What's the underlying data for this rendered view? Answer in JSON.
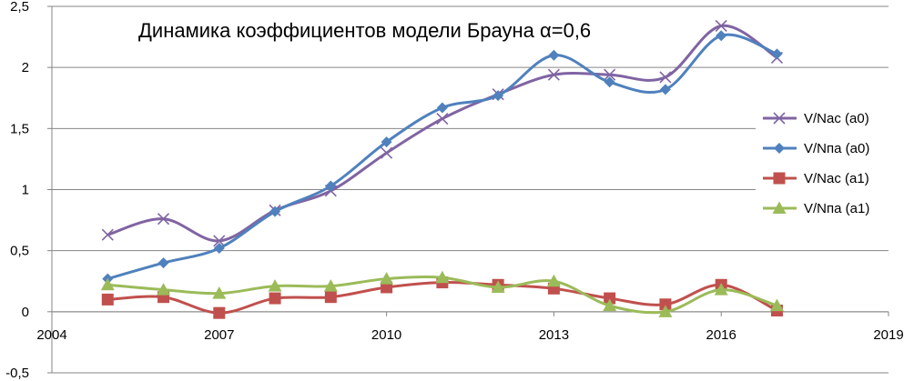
{
  "chart_data": {
    "type": "line",
    "title": "Динамика коэффициентов модели Брауна α=0,6",
    "xlim": [
      2004,
      2019
    ],
    "ylim": [
      -0.5,
      2.5
    ],
    "x_ticks": [
      2004,
      2007,
      2010,
      2013,
      2016,
      2019
    ],
    "x_tick_labels": [
      "2004",
      "2007",
      "2010",
      "2013",
      "2016",
      "2019"
    ],
    "y_ticks": [
      -0.5,
      0,
      0.5,
      1,
      1.5,
      2,
      2.5
    ],
    "y_tick_labels": [
      "-0,5",
      "0",
      "0,5",
      "1",
      "1,5",
      "2",
      "2,5"
    ],
    "grid": "horizontal",
    "legend_position": "right",
    "x": [
      2005,
      2006,
      2007,
      2008,
      2009,
      2010,
      2011,
      2012,
      2013,
      2014,
      2015,
      2016,
      2017
    ],
    "series": [
      {
        "name": "V/Nac (a0)",
        "color": "#8064A2",
        "marker": "x",
        "values": [
          0.63,
          0.76,
          0.58,
          0.83,
          0.99,
          1.3,
          1.58,
          1.78,
          1.94,
          1.94,
          1.92,
          2.34,
          2.08
        ]
      },
      {
        "name": "V/Nпа (a0)",
        "color": "#4F81BD",
        "marker": "diamond",
        "values": [
          0.27,
          0.4,
          0.52,
          0.82,
          1.03,
          1.39,
          1.67,
          1.77,
          2.1,
          1.88,
          1.82,
          2.26,
          2.11
        ]
      },
      {
        "name": "V/Nac (a1)",
        "color": "#C0504D",
        "marker": "square",
        "values": [
          0.1,
          0.12,
          -0.01,
          0.11,
          0.12,
          0.2,
          0.24,
          0.22,
          0.19,
          0.11,
          0.06,
          0.22,
          0.01
        ]
      },
      {
        "name": "V/Nпа (a1)",
        "color": "#9BBB59",
        "marker": "triangle",
        "values": [
          0.22,
          0.18,
          0.15,
          0.21,
          0.21,
          0.27,
          0.28,
          0.2,
          0.25,
          0.05,
          0.0,
          0.18,
          0.05
        ]
      }
    ]
  }
}
